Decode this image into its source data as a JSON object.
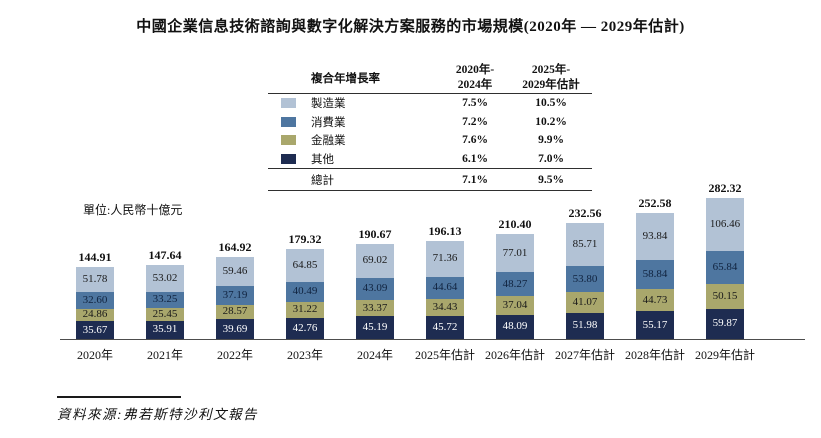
{
  "title": "中國企業信息技術諮詢與數字化解決方案服務的市場規模(2020年 — 2029年估計)",
  "unit_label": "單位:人民幣十億元",
  "source": "資料來源:弗若斯特沙利文報告",
  "legend_table": {
    "header": {
      "col1": "複合年增長率",
      "col2": "2020年-\n2024年",
      "col3": "2025年-\n2029年估計"
    },
    "rows": [
      {
        "label": "製造業",
        "color": "#b2c2d5",
        "v1": "7.5%",
        "v2": "10.5%"
      },
      {
        "label": "消費業",
        "color": "#4e76a0",
        "v1": "7.2%",
        "v2": "10.2%"
      },
      {
        "label": "金融業",
        "color": "#a9a76c",
        "v1": "7.6%",
        "v2": "9.9%"
      },
      {
        "label": "其他",
        "color": "#1e2c51",
        "v1": "6.1%",
        "v2": "7.0%"
      }
    ],
    "total_row": {
      "label": "總計",
      "v1": "7.1%",
      "v2": "9.5%"
    }
  },
  "chart_data": {
    "type": "bar",
    "stacked": true,
    "legend_position": "top",
    "grid": false,
    "ylim": [
      0,
      290
    ],
    "categories": [
      "2020年",
      "2021年",
      "2022年",
      "2023年",
      "2024年",
      "2025年估計",
      "2026年估計",
      "2027年估計",
      "2028年估計",
      "2029年估計"
    ],
    "series": [
      {
        "name": "製造業",
        "color": "#b2c2d5",
        "label_color": "#1a1a1a",
        "values": [
          51.78,
          53.02,
          59.46,
          64.85,
          69.02,
          71.36,
          77.01,
          85.71,
          93.84,
          106.46
        ]
      },
      {
        "name": "消費業",
        "color": "#4e76a0",
        "label_color": "#10233f",
        "values": [
          32.6,
          33.25,
          37.19,
          40.49,
          43.09,
          44.64,
          48.27,
          53.8,
          58.84,
          65.84
        ]
      },
      {
        "name": "金融業",
        "color": "#a9a76c",
        "label_color": "#1a1a1a",
        "values": [
          24.86,
          25.45,
          28.57,
          31.22,
          33.37,
          34.43,
          37.04,
          41.07,
          44.73,
          50.15
        ]
      },
      {
        "name": "其他",
        "color": "#1e2c51",
        "label_color": "#ffffff",
        "values": [
          35.67,
          35.91,
          39.69,
          42.76,
          45.19,
          45.72,
          48.09,
          51.98,
          55.17,
          59.87
        ]
      }
    ],
    "totals": [
      144.91,
      147.64,
      164.92,
      179.32,
      190.67,
      196.13,
      210.4,
      232.56,
      252.58,
      282.32
    ]
  }
}
